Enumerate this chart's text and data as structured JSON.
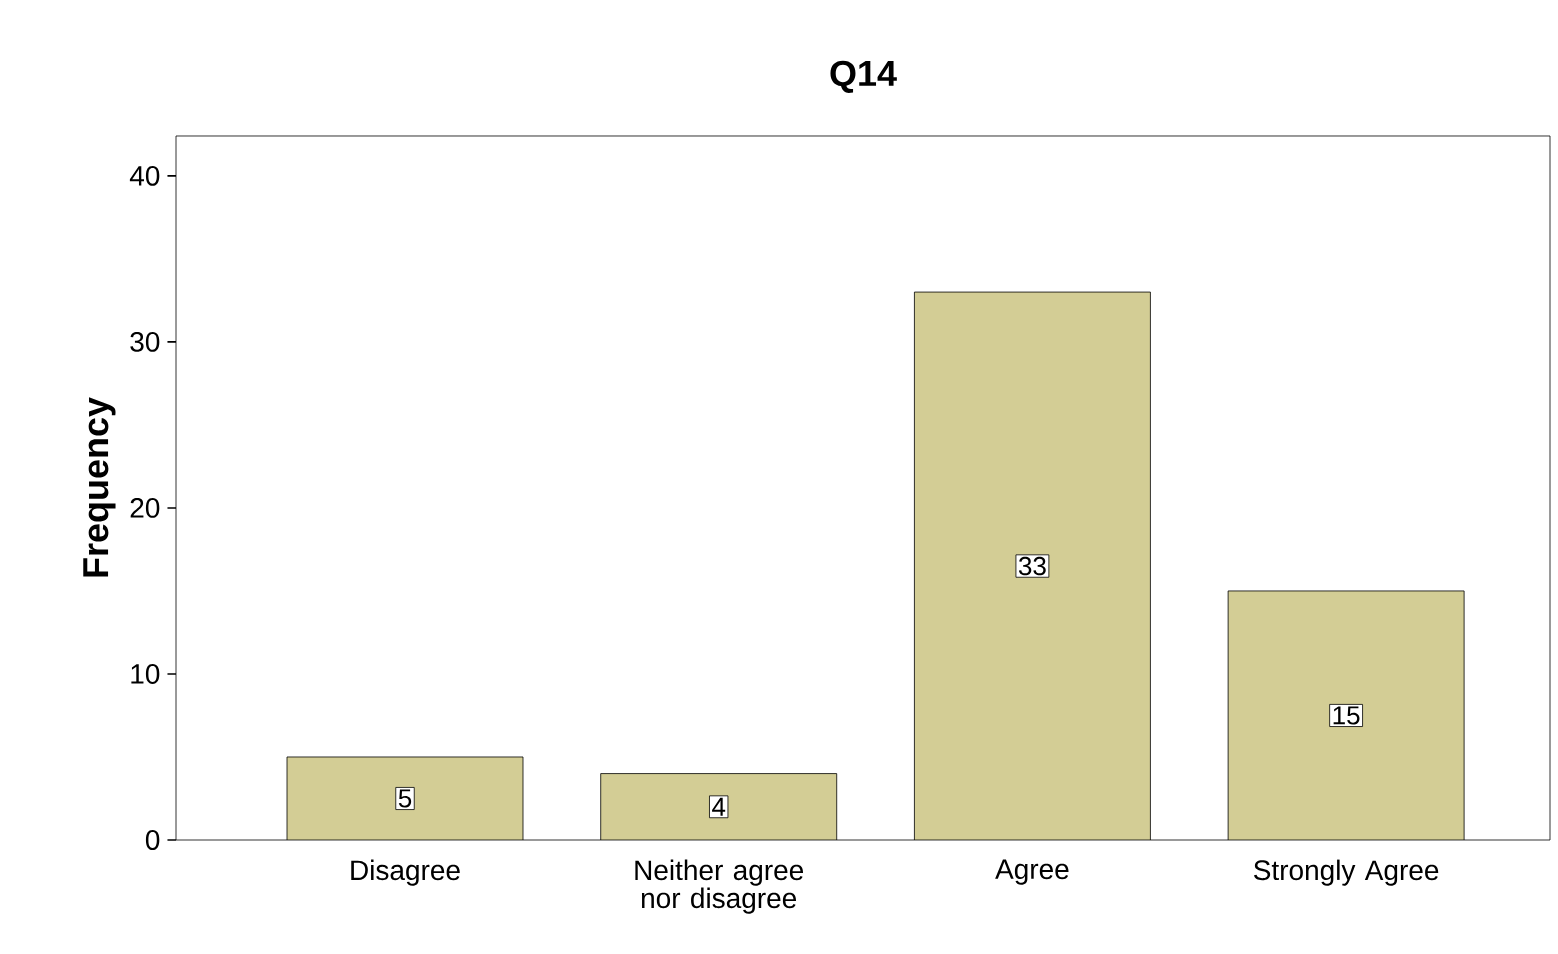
{
  "chart_data": {
    "type": "bar",
    "title": "Q14",
    "ylabel": "Frequency",
    "categories": [
      "Disagree",
      "Neither agree nor disagree",
      "Agree",
      "Strongly Agree"
    ],
    "values": [
      5,
      4,
      33,
      15
    ],
    "value_labels": [
      "5",
      "4",
      "33",
      "15"
    ],
    "color": "#d3cd95",
    "ylim": [
      0,
      42.4
    ],
    "yticks": [
      0,
      10,
      20,
      30,
      40
    ],
    "grid": false
  }
}
